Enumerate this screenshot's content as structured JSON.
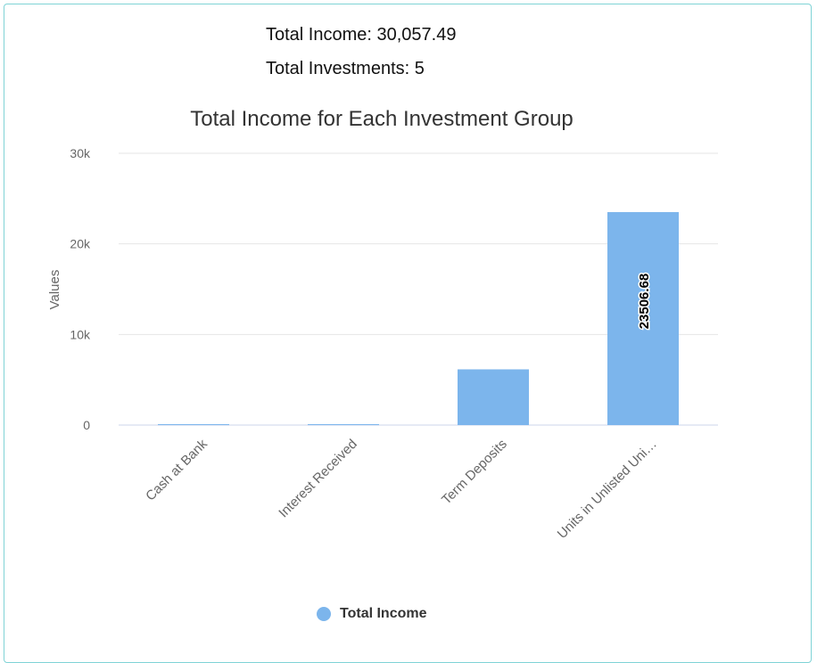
{
  "summary": {
    "total_income_label": "Total Income: 30,057.49",
    "total_investments_label": "Total Investments: 5"
  },
  "colors": {
    "bar": "#7cb5ec",
    "grid": "#e6e6e6",
    "axis": "#ccd6eb",
    "text": "#666666",
    "title": "#333333"
  },
  "chart_data": {
    "type": "bar",
    "title": "Total Income for Each Investment Group",
    "xlabel": "",
    "ylabel": "Values",
    "categories": [
      "Cash at Bank",
      "Interest Received",
      "Term Deposits",
      "Units in Unlisted Uni…"
    ],
    "series": [
      {
        "name": "Total Income",
        "values": [
          40,
          30,
          6150,
          23506.68
        ]
      }
    ],
    "ylim": [
      0,
      30000
    ],
    "yticks": [
      0,
      10000,
      20000,
      30000
    ],
    "ytick_labels": [
      "0",
      "10k",
      "20k",
      "30k"
    ],
    "data_labels": [
      null,
      null,
      null,
      "23506.68"
    ],
    "grid": true,
    "legend": "bottom-center"
  }
}
